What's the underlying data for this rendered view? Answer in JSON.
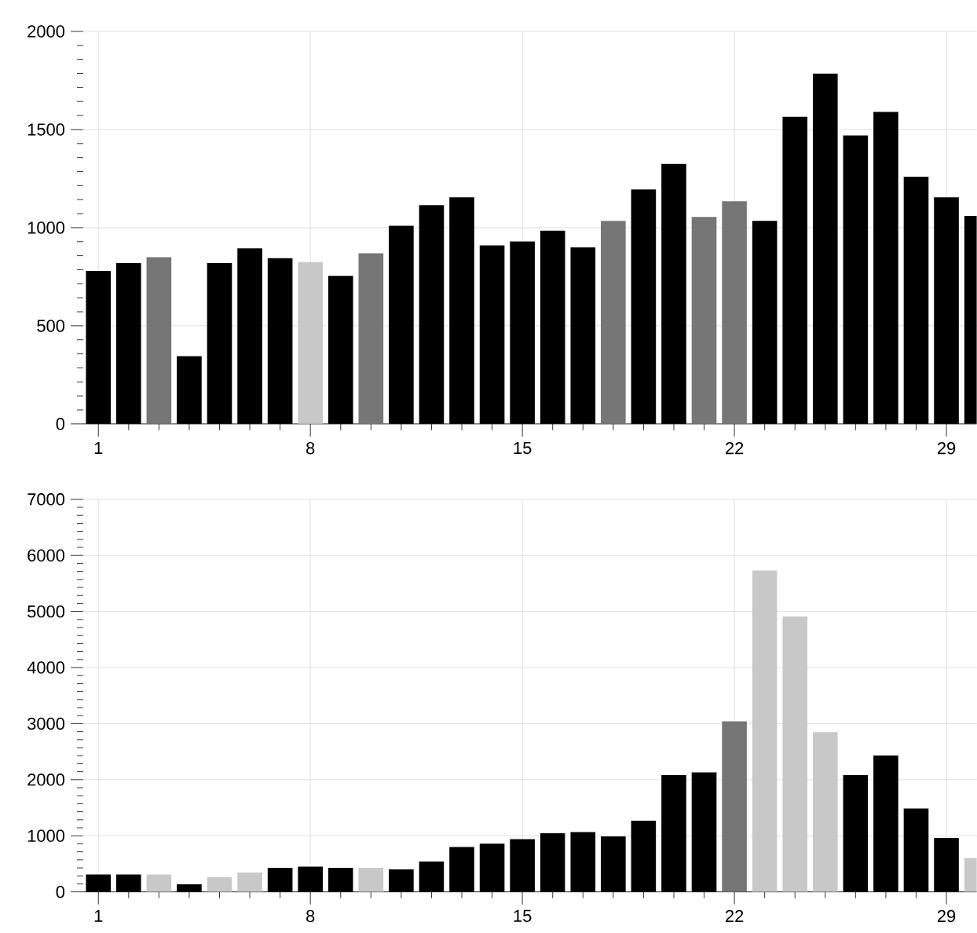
{
  "chart_data": [
    {
      "type": "bar",
      "x": [
        1,
        2,
        3,
        4,
        5,
        6,
        7,
        8,
        9,
        10,
        11,
        12,
        13,
        14,
        15,
        16,
        17,
        18,
        19,
        20,
        21,
        22,
        23,
        24,
        25,
        26,
        27,
        28,
        29,
        30
      ],
      "values": [
        780,
        820,
        850,
        345,
        820,
        895,
        845,
        825,
        755,
        870,
        1010,
        1115,
        1155,
        910,
        930,
        985,
        900,
        1035,
        1195,
        1325,
        1055,
        1135,
        1035,
        1565,
        1785,
        1470,
        1590,
        1260,
        1155,
        1060
      ],
      "colors": [
        "#000000",
        "#000000",
        "#767676",
        "#000000",
        "#000000",
        "#000000",
        "#000000",
        "#c8c8c8",
        "#000000",
        "#767676",
        "#000000",
        "#000000",
        "#000000",
        "#000000",
        "#000000",
        "#000000",
        "#000000",
        "#767676",
        "#000000",
        "#000000",
        "#767676",
        "#767676",
        "#000000",
        "#000000",
        "#000000",
        "#000000",
        "#000000",
        "#000000",
        "#000000",
        "#000000"
      ],
      "xlim": [
        0.5,
        30
      ],
      "xticks": [
        1,
        8,
        15,
        22,
        29
      ],
      "ylim": [
        0,
        2000
      ],
      "yticks": [
        0,
        500,
        1000,
        1500,
        2000
      ],
      "grid": true
    },
    {
      "type": "bar",
      "x": [
        1,
        2,
        3,
        4,
        5,
        6,
        7,
        8,
        9,
        10,
        11,
        12,
        13,
        14,
        15,
        16,
        17,
        18,
        19,
        20,
        21,
        22,
        23,
        24,
        25,
        26,
        27,
        28,
        29,
        30
      ],
      "values": [
        310,
        310,
        310,
        140,
        260,
        345,
        430,
        450,
        430,
        430,
        400,
        540,
        800,
        860,
        940,
        1045,
        1065,
        990,
        1270,
        2080,
        2130,
        3040,
        5730,
        4910,
        2850,
        2080,
        2430,
        1485,
        960,
        605
      ],
      "colors": [
        "#000000",
        "#000000",
        "#c8c8c8",
        "#000000",
        "#c8c8c8",
        "#c8c8c8",
        "#000000",
        "#000000",
        "#000000",
        "#c8c8c8",
        "#000000",
        "#000000",
        "#000000",
        "#000000",
        "#000000",
        "#000000",
        "#000000",
        "#000000",
        "#000000",
        "#000000",
        "#000000",
        "#767676",
        "#c8c8c8",
        "#c8c8c8",
        "#c8c8c8",
        "#000000",
        "#000000",
        "#000000",
        "#000000",
        "#c8c8c8"
      ],
      "xlim": [
        0.5,
        30
      ],
      "xticks": [
        1,
        8,
        15,
        22,
        29
      ],
      "ylim": [
        0,
        7000
      ],
      "yticks": [
        0,
        1000,
        2000,
        3000,
        4000,
        5000,
        6000,
        7000
      ],
      "grid": true
    }
  ]
}
